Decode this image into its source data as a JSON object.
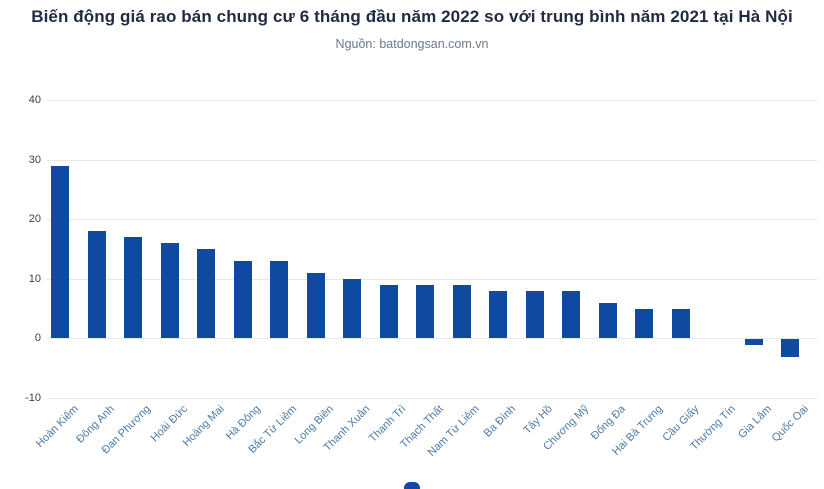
{
  "chart_data": {
    "type": "bar",
    "title": "Biến động giá rao bán chung cư 6 tháng đầu năm 2022 so với trung bình năm 2021 tại Hà Nội",
    "subtitle": "Nguồn: batdongsan.com.vn",
    "categories": [
      "Hoàn Kiếm",
      "Đông Anh",
      "Đan Phượng",
      "Hoài Đức",
      "Hoàng Mai",
      "Hà Đông",
      "Bắc Từ Liêm",
      "Long Biên",
      "Thanh Xuân",
      "Thanh Trì",
      "Thạch Thất",
      "Nam Từ Liêm",
      "Ba Đình",
      "Tây Hồ",
      "Chương Mỹ",
      "Đống Đa",
      "Hai Bà Trưng",
      "Cầu Giấy",
      "Thường Tín",
      "Gia Lâm",
      "Quốc Oai"
    ],
    "values": [
      29,
      18,
      17,
      16,
      15,
      13,
      13,
      11,
      10,
      9,
      9,
      9,
      8,
      8,
      8,
      6,
      5,
      5,
      0,
      -1,
      -3
    ],
    "xlabel": "",
    "ylabel": "",
    "ylim": [
      -10,
      40
    ],
    "yticks": [
      40,
      30,
      20,
      10,
      0,
      -10
    ],
    "grid": true,
    "legend_position": "bottom"
  },
  "colors": {
    "bar": "#0E4AA2",
    "title": "#222B45",
    "source": "#6D7A88",
    "gridline": "#E7E7E7",
    "y_tick_label": "#3F3F3F",
    "x_tick_label": "#4D7AA8"
  }
}
